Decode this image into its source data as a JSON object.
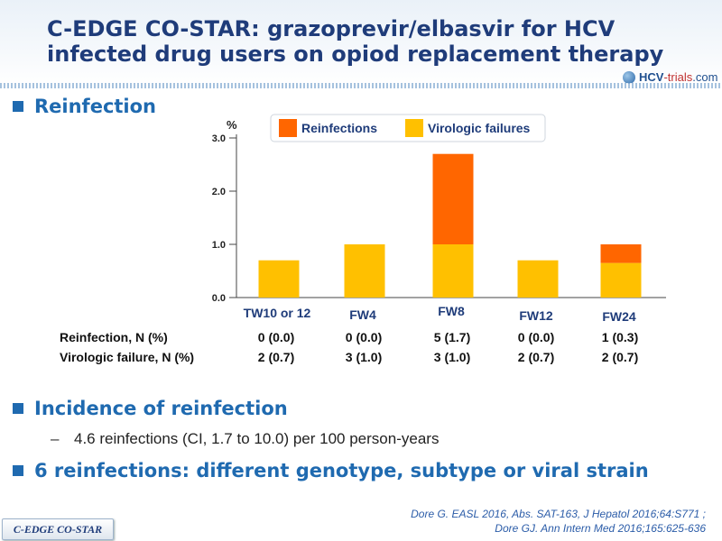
{
  "slide": {
    "title_line1": "C-EDGE CO-STAR: grazoprevir/elbasvir for HCV",
    "title_line2": "infected drug users on opiod replacement therapy",
    "logo": {
      "part1": "HCV",
      "part2": "-trials",
      "part3": ".com"
    },
    "bullets": {
      "reinfection": "Reinfection",
      "incidence": "Incidence of reinfection",
      "incidence_detail_dash": "–",
      "incidence_detail": "4.6 reinfections (CI, 1.7 to 10.0) per 100 person-years",
      "six_reinfections": "6 reinfections: different genotype, subtype or viral strain"
    },
    "table": {
      "row_labels": [
        "Reinfection, N (%)",
        "Virologic failure, N (%)"
      ],
      "reinfection": [
        "0 (0.0)",
        "0 (0.0)",
        "5 (1.7)",
        "0 (0.0)",
        "1 (0.3)"
      ],
      "virologic_failure": [
        "2 (0.7)",
        "3 (1.0)",
        "3 (1.0)",
        "2 (0.7)",
        "2 (0.7)"
      ]
    },
    "reference_line1": "Dore G. EASL 2016, Abs. SAT-163, J Hepatol 2016;64:S771 ;",
    "reference_line2": "Dore GJ. Ann Intern Med 2016;165:625-636",
    "footer_tab": "C-EDGE CO-STAR"
  },
  "chart_data": {
    "type": "bar",
    "stacked": true,
    "categories": [
      "TW10 or 12",
      "FW4",
      "FW8",
      "FW12",
      "FW24"
    ],
    "series": [
      {
        "name": "Virologic  failures",
        "color": "#ffc000",
        "values": [
          0.7,
          1.0,
          1.0,
          0.7,
          0.65
        ]
      },
      {
        "name": "Reinfections",
        "color": "#ff6600",
        "values": [
          0.0,
          0.0,
          1.7,
          0.0,
          0.35
        ]
      }
    ],
    "legend_order": [
      "Reinfections",
      "Virologic  failures"
    ],
    "ylabel": "%",
    "ylim": [
      0,
      3.0
    ],
    "yticks": [
      "0.0",
      "1.0",
      "2.0",
      "3.0"
    ],
    "grid": false,
    "legend_position": "top"
  }
}
